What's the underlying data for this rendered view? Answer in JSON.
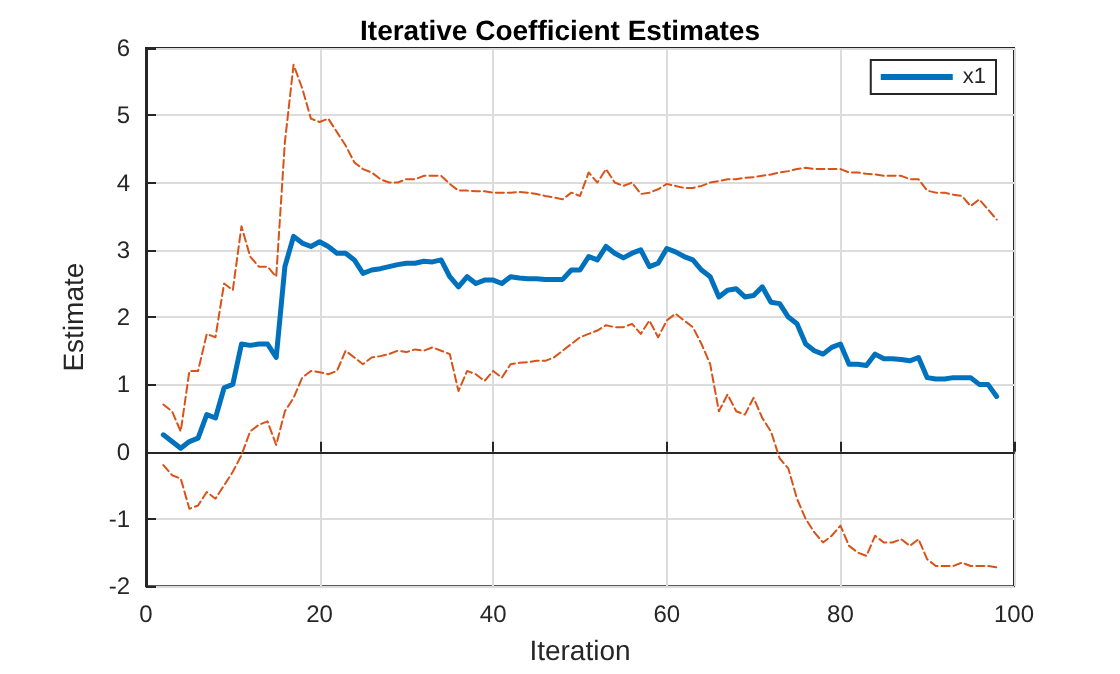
{
  "chart_data": {
    "type": "line",
    "title": "Iterative Coefficient Estimates",
    "xlabel": "Iteration",
    "ylabel": "Estimate",
    "x": [
      2,
      3,
      4,
      5,
      6,
      7,
      8,
      9,
      10,
      11,
      12,
      13,
      14,
      15,
      16,
      17,
      18,
      19,
      20,
      21,
      22,
      23,
      24,
      25,
      26,
      27,
      28,
      29,
      30,
      31,
      32,
      33,
      34,
      35,
      36,
      37,
      38,
      39,
      40,
      41,
      42,
      43,
      44,
      45,
      46,
      47,
      48,
      49,
      50,
      51,
      52,
      53,
      54,
      55,
      56,
      57,
      58,
      59,
      60,
      61,
      62,
      63,
      64,
      65,
      66,
      67,
      68,
      69,
      70,
      71,
      72,
      73,
      74,
      75,
      76,
      77,
      78,
      79,
      80,
      81,
      82,
      83,
      84,
      85,
      86,
      87,
      88,
      89,
      90,
      91,
      92,
      93,
      94,
      95,
      96,
      97,
      98
    ],
    "series": [
      {
        "name": "x1",
        "color": "#0072bd",
        "line_style": "solid",
        "values": [
          0.25,
          0.15,
          0.05,
          0.15,
          0.2,
          0.55,
          0.5,
          0.95,
          1.0,
          1.6,
          1.58,
          1.6,
          1.6,
          1.4,
          2.75,
          3.2,
          3.1,
          3.05,
          3.12,
          3.05,
          2.95,
          2.95,
          2.85,
          2.65,
          2.7,
          2.72,
          2.75,
          2.78,
          2.8,
          2.8,
          2.83,
          2.82,
          2.85,
          2.6,
          2.45,
          2.6,
          2.5,
          2.55,
          2.55,
          2.5,
          2.6,
          2.58,
          2.57,
          2.57,
          2.56,
          2.56,
          2.56,
          2.7,
          2.7,
          2.9,
          2.85,
          3.05,
          2.95,
          2.88,
          2.95,
          3.0,
          2.75,
          2.8,
          3.02,
          2.97,
          2.9,
          2.85,
          2.7,
          2.6,
          2.3,
          2.4,
          2.42,
          2.3,
          2.32,
          2.45,
          2.22,
          2.2,
          2.0,
          1.9,
          1.6,
          1.5,
          1.45,
          1.55,
          1.6,
          1.3,
          1.3,
          1.28,
          1.45,
          1.38,
          1.38,
          1.37,
          1.35,
          1.4,
          1.1,
          1.08,
          1.08,
          1.1,
          1.1,
          1.1,
          1.0,
          1.0,
          0.82
        ]
      },
      {
        "color": "#d95319",
        "line_style": "dashed",
        "values": [
          0.7,
          0.6,
          0.3,
          1.2,
          1.2,
          1.75,
          1.7,
          2.5,
          2.4,
          3.35,
          2.9,
          2.75,
          2.75,
          2.6,
          4.6,
          5.75,
          5.4,
          4.95,
          4.9,
          4.95,
          4.75,
          4.55,
          4.3,
          4.2,
          4.15,
          4.05,
          4.0,
          4.0,
          4.05,
          4.05,
          4.1,
          4.1,
          4.1,
          3.98,
          3.88,
          3.88,
          3.87,
          3.87,
          3.85,
          3.85,
          3.85,
          3.86,
          3.85,
          3.83,
          3.8,
          3.78,
          3.75,
          3.85,
          3.8,
          4.15,
          4.0,
          4.2,
          4.0,
          3.95,
          4.0,
          3.83,
          3.85,
          3.9,
          3.98,
          3.95,
          3.92,
          3.92,
          3.95,
          4.0,
          4.02,
          4.05,
          4.05,
          4.07,
          4.08,
          4.1,
          4.12,
          4.15,
          4.17,
          4.2,
          4.22,
          4.2,
          4.2,
          4.2,
          4.2,
          4.15,
          4.15,
          4.13,
          4.12,
          4.1,
          4.1,
          4.1,
          4.05,
          4.05,
          3.88,
          3.85,
          3.85,
          3.82,
          3.8,
          3.65,
          3.75,
          3.6,
          3.45
        ]
      },
      {
        "color": "#d95319",
        "line_style": "dashed",
        "values": [
          -0.2,
          -0.35,
          -0.4,
          -0.85,
          -0.8,
          -0.6,
          -0.7,
          -0.5,
          -0.3,
          -0.05,
          0.3,
          0.4,
          0.45,
          0.1,
          0.6,
          0.8,
          1.1,
          1.2,
          1.18,
          1.15,
          1.2,
          1.5,
          1.4,
          1.3,
          1.4,
          1.42,
          1.45,
          1.5,
          1.48,
          1.52,
          1.5,
          1.55,
          1.5,
          1.45,
          0.9,
          1.2,
          1.15,
          1.05,
          1.2,
          1.1,
          1.3,
          1.32,
          1.33,
          1.35,
          1.35,
          1.4,
          1.5,
          1.6,
          1.7,
          1.75,
          1.8,
          1.88,
          1.85,
          1.85,
          1.9,
          1.75,
          1.95,
          1.7,
          1.95,
          2.05,
          1.95,
          1.85,
          1.6,
          1.3,
          0.6,
          0.85,
          0.6,
          0.55,
          0.8,
          0.5,
          0.3,
          -0.1,
          -0.25,
          -0.7,
          -1.0,
          -1.2,
          -1.35,
          -1.25,
          -1.1,
          -1.4,
          -1.5,
          -1.55,
          -1.25,
          -1.35,
          -1.35,
          -1.3,
          -1.4,
          -1.3,
          -1.6,
          -1.7,
          -1.7,
          -1.7,
          -1.65,
          -1.7,
          -1.7,
          -1.7,
          -1.72
        ]
      }
    ],
    "xlim": [
      0,
      100
    ],
    "xticks": [
      0,
      20,
      40,
      60,
      80,
      100
    ],
    "ylim": [
      -2,
      6
    ],
    "yticks": [
      -2,
      -1,
      0,
      1,
      2,
      3,
      4,
      5,
      6
    ],
    "grid": true,
    "legend": "top right",
    "marker": "none"
  }
}
